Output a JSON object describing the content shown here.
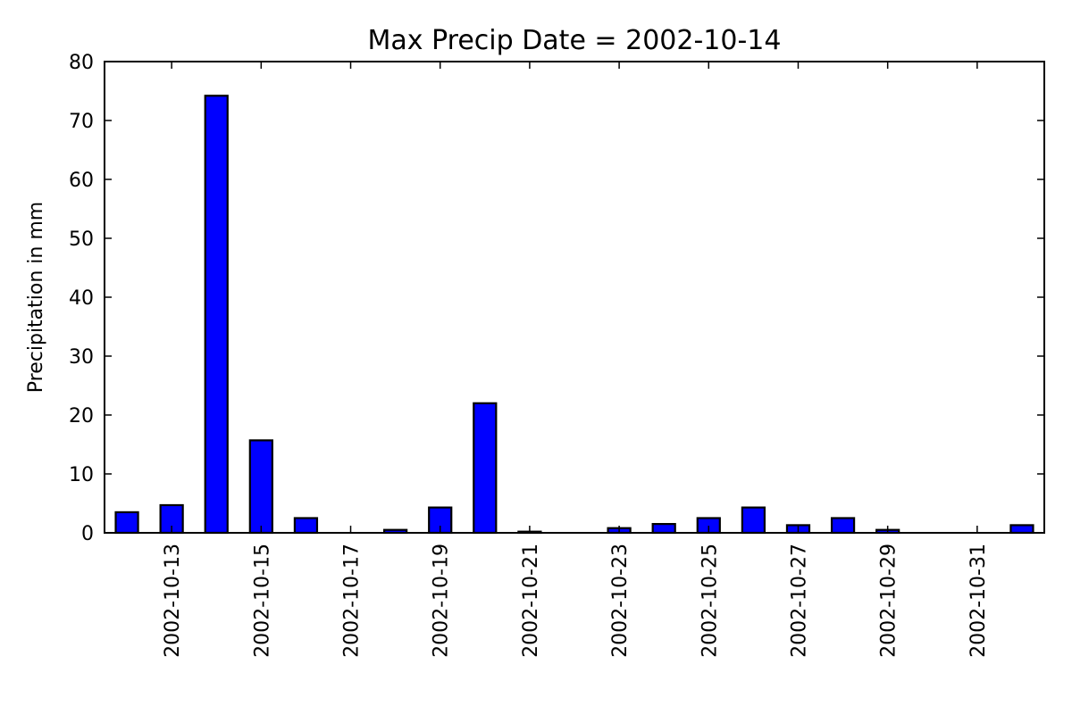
{
  "chart_data": {
    "type": "bar",
    "title": "Max Precip Date = 2002-10-14",
    "xlabel": "",
    "ylabel": "Precipitation in mm",
    "ylim": [
      0,
      80
    ],
    "yticks": [
      0,
      10,
      20,
      30,
      40,
      50,
      60,
      70,
      80
    ],
    "categories": [
      "2002-10-12",
      "2002-10-13",
      "2002-10-14",
      "2002-10-15",
      "2002-10-16",
      "2002-10-17",
      "2002-10-18",
      "2002-10-19",
      "2002-10-20",
      "2002-10-21",
      "2002-10-22",
      "2002-10-23",
      "2002-10-24",
      "2002-10-25",
      "2002-10-26",
      "2002-10-27",
      "2002-10-28",
      "2002-10-29",
      "2002-10-30",
      "2002-10-31",
      "2002-11-01"
    ],
    "values": [
      3.5,
      4.7,
      74.2,
      15.7,
      2.5,
      0.0,
      0.5,
      4.3,
      22.0,
      0.2,
      0.0,
      0.8,
      1.5,
      2.5,
      4.3,
      1.3,
      2.5,
      0.5,
      0.0,
      0.0,
      1.3
    ],
    "xtick_labels": [
      "2002-10-13",
      "2002-10-15",
      "2002-10-17",
      "2002-10-19",
      "2002-10-21",
      "2002-10-23",
      "2002-10-25",
      "2002-10-27",
      "2002-10-29",
      "2002-10-31"
    ],
    "bar_color": "#0000ff",
    "edge_color": "#000000",
    "grid": false,
    "legend": "none"
  }
}
